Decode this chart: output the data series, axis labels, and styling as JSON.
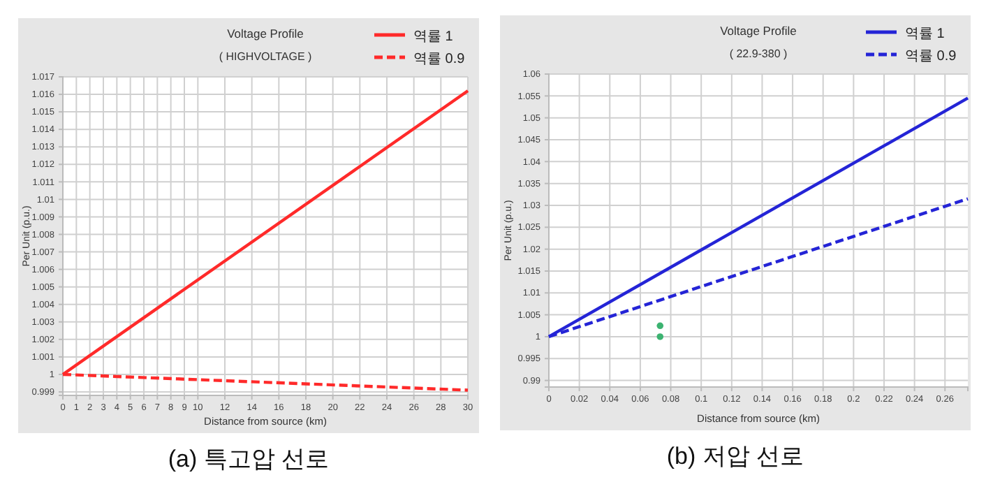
{
  "chart_data": [
    {
      "type": "line",
      "title": "Voltage Profile",
      "subtitle": "( HIGHVOLTAGE )",
      "xlabel": "Distance from source (km)",
      "ylabel": "Per Unit (p.u.)",
      "annotations": [
        "(a) 특고압 선로"
      ],
      "x": [
        0,
        30
      ],
      "series": [
        {
          "name": "역률 1",
          "color": "#ff2a2a",
          "values": [
            1,
            1.0162
          ],
          "line_style": "solid"
        },
        {
          "name": "역률 0.9",
          "color": "#ff2a2a",
          "values": [
            1,
            0.9991
          ],
          "line_style": "dashed"
        }
      ],
      "xlim": [
        0,
        30
      ],
      "xticks": [
        0,
        1,
        2,
        3,
        4,
        5,
        6,
        7,
        8,
        9,
        10,
        12,
        14,
        16,
        18,
        20,
        22,
        24,
        26,
        28,
        30
      ],
      "ylim": [
        0.9988,
        1.017
      ],
      "yticks": [
        0.999,
        1,
        1.001,
        1.002,
        1.003,
        1.004,
        1.005,
        1.006,
        1.007,
        1.008,
        1.009,
        1.01,
        1.011,
        1.012,
        1.013,
        1.014,
        1.015,
        1.016,
        1.017
      ],
      "grid": true,
      "legend": "top right"
    },
    {
      "type": "line",
      "title": "Voltage Profile",
      "subtitle": "( 22.9-380 )",
      "xlabel": "Distance from source (km)",
      "ylabel": "Per Unit (p.u.)",
      "annotations": [
        "(b) 저압 선로"
      ],
      "x": [
        0,
        0.275
      ],
      "series": [
        {
          "name": "역률 1",
          "color": "#2424d6",
          "values": [
            1,
            1.0545
          ],
          "line_style": "solid"
        },
        {
          "name": "역률 0.9",
          "color": "#2424d6",
          "values": [
            1,
            1.0315
          ],
          "line_style": "dashed"
        },
        {
          "type": "scatter",
          "color": "#3cb371",
          "x": [
            0.073,
            0.073
          ],
          "values": [
            1.0025,
            1
          ]
        }
      ],
      "xlim": [
        0,
        0.275
      ],
      "xticks": [
        0,
        0.02,
        0.04,
        0.06,
        0.08,
        0.1,
        0.12,
        0.14,
        0.16,
        0.18,
        0.2,
        0.22,
        0.24,
        0.26
      ],
      "ylim": [
        0.9885,
        1.06
      ],
      "yticks": [
        0.99,
        0.995,
        1,
        1.005,
        1.01,
        1.015,
        1.02,
        1.025,
        1.03,
        1.035,
        1.04,
        1.045,
        1.05,
        1.055,
        1.06
      ],
      "grid": true,
      "legend": "top right"
    }
  ]
}
